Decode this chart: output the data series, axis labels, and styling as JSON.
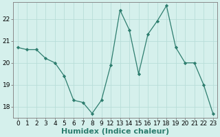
{
  "x_indices": [
    0,
    1,
    2,
    3,
    4,
    5,
    6,
    7,
    8,
    9,
    10,
    11,
    12,
    13,
    14,
    15,
    16,
    17,
    18,
    19,
    20,
    21
  ],
  "x_labels": [
    "0",
    "1",
    "2",
    "3",
    "4",
    "5",
    "6",
    "7",
    "8",
    "9",
    "12",
    "13",
    "14",
    "15",
    "16",
    "17",
    "18",
    "19",
    "20",
    "21",
    "22",
    "23"
  ],
  "y": [
    20.7,
    20.6,
    20.6,
    20.2,
    20.0,
    19.4,
    18.3,
    18.2,
    17.7,
    18.3,
    19.9,
    22.4,
    21.5,
    19.5,
    21.3,
    21.9,
    22.6,
    20.7,
    20.0,
    20.0,
    19.0,
    17.7
  ],
  "line_color": "#2d7d6e",
  "marker_color": "#2d7d6e",
  "bg_color": "#d5f0ec",
  "grid_color": "#b8ddd8",
  "axis_color": "#888888",
  "xlabel": "Humidex (Indice chaleur)",
  "xlim": [
    -0.5,
    21.5
  ],
  "ylim": [
    17.5,
    22.75
  ],
  "yticks": [
    18,
    19,
    20,
    21,
    22
  ],
  "label_fontsize": 8,
  "tick_fontsize": 6.5
}
